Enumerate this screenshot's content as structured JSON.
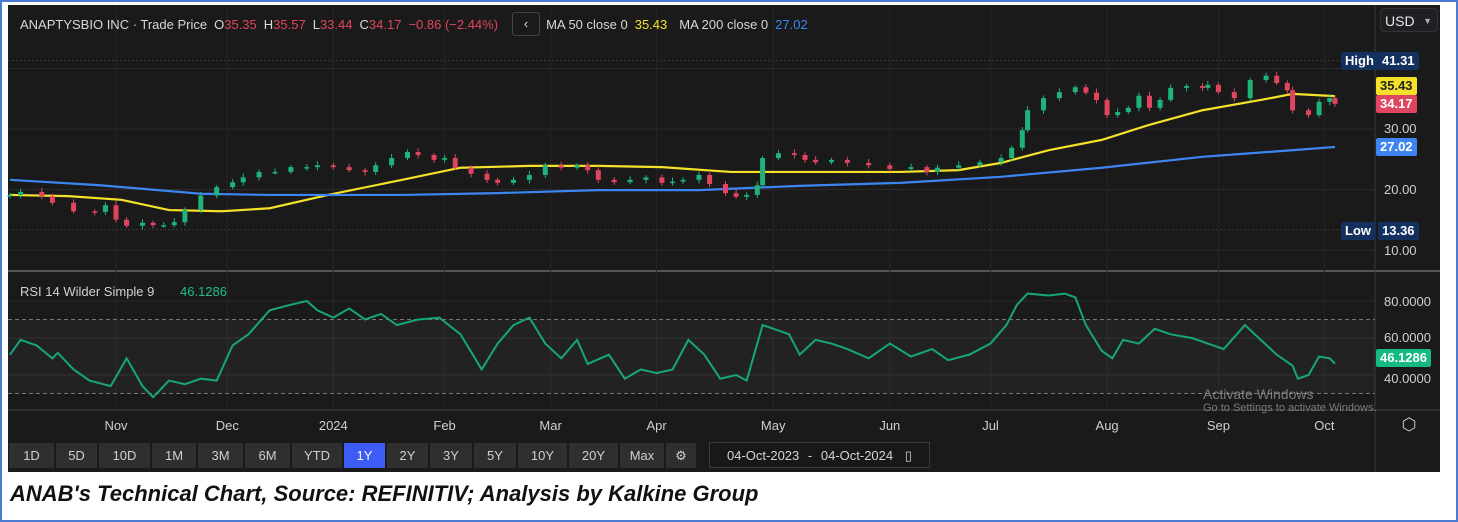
{
  "header": {
    "symbol": "ANAPTYSBIO INC · Trade Price",
    "open_label": "O",
    "open": "35.35",
    "high_label": "H",
    "high": "35.57",
    "low_label": "L",
    "low": "33.44",
    "close_label": "C",
    "close": "34.17",
    "change": "−0.86 (−2.44%)",
    "ma50_label": "MA 50 close 0",
    "ma50_value": "35.43",
    "ma200_label": "MA 200 close 0",
    "ma200_value": "27.02"
  },
  "currency": "USD",
  "colors": {
    "up": "#1fb37a",
    "down": "#e0455f",
    "ma50": "#f5e12a",
    "ma200": "#3d86f2",
    "rsi": "#16a67a",
    "bg": "#1a1a1a"
  },
  "price_tags": {
    "high_label": "High",
    "high": "41.31",
    "ma50": "35.43",
    "last": "34.17",
    "ma200": "27.02",
    "low_label": "Low",
    "low": "13.36"
  },
  "rsi": {
    "label": "RSI 14 Wilder Simple 9",
    "value": "46.1286"
  },
  "range_buttons": [
    "1D",
    "5D",
    "10D",
    "1M",
    "3M",
    "6M",
    "YTD",
    "1Y",
    "2Y",
    "3Y",
    "5Y",
    "10Y",
    "20Y",
    "Max"
  ],
  "active_range": "1Y",
  "date_range": {
    "from": "04-Oct-2023",
    "sep": "-",
    "to": "04-Oct-2024"
  },
  "watermark": {
    "title": "Activate Windows",
    "sub": "Go to Settings to activate Windows."
  },
  "caption": "ANAB's Technical Chart, Source: REFINITIV; Analysis by Kalkine Group",
  "chart_data": [
    {
      "type": "candlestick",
      "title": "ANAPTYSBIO INC · Trade Price",
      "x_unit": "trading day (0 = 04-Oct-2023, 250 = 04-Oct-2024)",
      "xlim": [
        0,
        250
      ],
      "ylim": [
        5,
        45
      ],
      "y_ticks": [
        "10.00",
        "20.00",
        "30.00"
      ],
      "y_tick_values": [
        10,
        20,
        30
      ],
      "x_tick_labels": [
        "Nov",
        "Dec",
        "2024",
        "Feb",
        "Mar",
        "Apr",
        "May",
        "Jun",
        "Jul",
        "Aug",
        "Sep",
        "Oct"
      ],
      "x_tick_days": [
        20,
        41,
        61,
        82,
        102,
        122,
        144,
        166,
        185,
        207,
        228,
        248
      ],
      "close": [
        [
          0,
          19.1
        ],
        [
          2,
          19.6
        ],
        [
          6,
          18.9
        ],
        [
          8,
          17.8
        ],
        [
          12,
          16.4
        ],
        [
          16,
          16.3
        ],
        [
          18,
          17.4
        ],
        [
          20,
          15
        ],
        [
          22,
          14
        ],
        [
          25,
          14.5
        ],
        [
          27,
          14.1
        ],
        [
          29,
          14.1
        ],
        [
          31,
          14.6
        ],
        [
          33,
          16.6
        ],
        [
          36,
          19
        ],
        [
          39,
          20.4
        ],
        [
          42,
          21.2
        ],
        [
          44,
          22
        ],
        [
          47,
          22.9
        ],
        [
          50,
          22.9
        ],
        [
          53,
          23.7
        ],
        [
          56,
          23.7
        ],
        [
          58,
          24
        ],
        [
          61,
          23.7
        ],
        [
          64,
          23.2
        ],
        [
          67,
          22.9
        ],
        [
          69,
          24
        ],
        [
          72,
          25.2
        ],
        [
          75,
          26.2
        ],
        [
          77,
          25.7
        ],
        [
          80,
          24.9
        ],
        [
          82,
          25.2
        ],
        [
          84,
          23.6
        ],
        [
          87,
          22.6
        ],
        [
          90,
          21.6
        ],
        [
          92,
          21.1
        ],
        [
          95,
          21.6
        ],
        [
          98,
          22.4
        ],
        [
          101,
          24
        ],
        [
          104,
          23.6
        ],
        [
          107,
          24
        ],
        [
          109,
          23.2
        ],
        [
          111,
          21.6
        ],
        [
          114,
          21.2
        ],
        [
          117,
          21.6
        ],
        [
          120,
          22
        ],
        [
          123,
          21.1
        ],
        [
          125,
          21.3
        ],
        [
          127,
          21.6
        ],
        [
          130,
          22.4
        ],
        [
          132,
          20.9
        ],
        [
          135,
          19.4
        ],
        [
          137,
          18.8
        ],
        [
          139,
          19.1
        ],
        [
          141,
          20.7
        ],
        [
          142,
          25.2
        ],
        [
          145,
          26
        ],
        [
          148,
          25.7
        ],
        [
          150,
          24.9
        ],
        [
          152,
          24.5
        ],
        [
          155,
          24.9
        ],
        [
          158,
          24.4
        ],
        [
          162,
          24
        ],
        [
          166,
          23.4
        ],
        [
          170,
          23.7
        ],
        [
          173,
          22.9
        ],
        [
          175,
          23.6
        ],
        [
          179,
          24
        ],
        [
          183,
          24.5
        ],
        [
          187,
          25.2
        ],
        [
          189,
          26.9
        ],
        [
          191,
          29.8
        ],
        [
          192,
          33.1
        ],
        [
          195,
          35.1
        ],
        [
          198,
          36.1
        ],
        [
          201,
          36.9
        ],
        [
          203,
          36
        ],
        [
          205,
          34.8
        ],
        [
          207,
          32.3
        ],
        [
          209,
          32.8
        ],
        [
          211,
          33.5
        ],
        [
          213,
          35.5
        ],
        [
          215,
          33.5
        ],
        [
          217,
          34.8
        ],
        [
          219,
          36.8
        ],
        [
          222,
          37.1
        ],
        [
          225,
          36.8
        ],
        [
          226,
          37.3
        ],
        [
          228,
          36.1
        ],
        [
          231,
          35.1
        ],
        [
          234,
          38.1
        ],
        [
          237,
          38.8
        ],
        [
          239,
          37.6
        ],
        [
          241,
          36.4
        ],
        [
          242,
          33.1
        ],
        [
          245,
          32.3
        ],
        [
          247,
          34.5
        ],
        [
          249,
          35.1
        ],
        [
          250,
          34.17
        ]
      ],
      "series": [
        {
          "name": "MA 50 close 0",
          "color": "#f5e12a",
          "points": [
            [
              0,
              19.1
            ],
            [
              11,
              18.9
            ],
            [
              21,
              18.3
            ],
            [
              30,
              16.6
            ],
            [
              40,
              16.4
            ],
            [
              49,
              16.9
            ],
            [
              60,
              19.1
            ],
            [
              74,
              21.6
            ],
            [
              85,
              23.6
            ],
            [
              98,
              23.9
            ],
            [
              111,
              23.9
            ],
            [
              123,
              23.7
            ],
            [
              136,
              22.9
            ],
            [
              149,
              22.9
            ],
            [
              168,
              22.9
            ],
            [
              179,
              23.2
            ],
            [
              187,
              24.4
            ],
            [
              196,
              26.5
            ],
            [
              206,
              28.2
            ],
            [
              215,
              30.7
            ],
            [
              225,
              33.1
            ],
            [
              236,
              34.8
            ],
            [
              242,
              35.8
            ],
            [
              250,
              35.43
            ]
          ]
        },
        {
          "name": "MA 200 close 0",
          "color": "#3d86f2",
          "points": [
            [
              0,
              21.6
            ],
            [
              17,
              20.7
            ],
            [
              36,
              19.3
            ],
            [
              49,
              19.1
            ],
            [
              74,
              19.1
            ],
            [
              92,
              19.4
            ],
            [
              111,
              19.9
            ],
            [
              130,
              19.9
            ],
            [
              149,
              20.6
            ],
            [
              168,
              21.1
            ],
            [
              187,
              22.1
            ],
            [
              206,
              23.6
            ],
            [
              225,
              25.4
            ],
            [
              250,
              27.02
            ]
          ]
        }
      ],
      "high": 41.31,
      "low": 13.36
    },
    {
      "type": "line",
      "title": "RSI 14 Wilder Simple 9",
      "xlim": [
        0,
        250
      ],
      "ylim": [
        20,
        90
      ],
      "y_ticks": [
        "40.0000",
        "60.0000",
        "80.0000"
      ],
      "y_tick_values": [
        40,
        60,
        80
      ],
      "bands": [
        30,
        70
      ],
      "points": [
        [
          0,
          51
        ],
        [
          2,
          59
        ],
        [
          5,
          56
        ],
        [
          8,
          49
        ],
        [
          9,
          52
        ],
        [
          12,
          43
        ],
        [
          15,
          37
        ],
        [
          19,
          34
        ],
        [
          22,
          49
        ],
        [
          25,
          34
        ],
        [
          27,
          28
        ],
        [
          30,
          37
        ],
        [
          33,
          35
        ],
        [
          36,
          38
        ],
        [
          39,
          37
        ],
        [
          42,
          56
        ],
        [
          45,
          62
        ],
        [
          49,
          75
        ],
        [
          53,
          78
        ],
        [
          56,
          80
        ],
        [
          58,
          75
        ],
        [
          61,
          71
        ],
        [
          64,
          76
        ],
        [
          67,
          70
        ],
        [
          70,
          73
        ],
        [
          73,
          67
        ],
        [
          77,
          70
        ],
        [
          81,
          71
        ],
        [
          85,
          62
        ],
        [
          89,
          43
        ],
        [
          92,
          57
        ],
        [
          95,
          67
        ],
        [
          98,
          71
        ],
        [
          101,
          57
        ],
        [
          104,
          49
        ],
        [
          107,
          59
        ],
        [
          109,
          46
        ],
        [
          113,
          51
        ],
        [
          116,
          38
        ],
        [
          119,
          43
        ],
        [
          122,
          41
        ],
        [
          125,
          43
        ],
        [
          128,
          59
        ],
        [
          131,
          51
        ],
        [
          134,
          38
        ],
        [
          137,
          40
        ],
        [
          139,
          37
        ],
        [
          142,
          67
        ],
        [
          145,
          64
        ],
        [
          147,
          62
        ],
        [
          149,
          51
        ],
        [
          152,
          59
        ],
        [
          155,
          57
        ],
        [
          158,
          54
        ],
        [
          162,
          49
        ],
        [
          166,
          57
        ],
        [
          170,
          50
        ],
        [
          174,
          54
        ],
        [
          177,
          48
        ],
        [
          181,
          51
        ],
        [
          185,
          57
        ],
        [
          188,
          67
        ],
        [
          190,
          78
        ],
        [
          192,
          84
        ],
        [
          196,
          83
        ],
        [
          199,
          84
        ],
        [
          201,
          82
        ],
        [
          203,
          67
        ],
        [
          206,
          53
        ],
        [
          208,
          49
        ],
        [
          210,
          59
        ],
        [
          213,
          57
        ],
        [
          216,
          65
        ],
        [
          219,
          62
        ],
        [
          223,
          60
        ],
        [
          226,
          57
        ],
        [
          229,
          54
        ],
        [
          233,
          67
        ],
        [
          236,
          59
        ],
        [
          239,
          51
        ],
        [
          242,
          45
        ],
        [
          243,
          38
        ],
        [
          245,
          40
        ],
        [
          247,
          50
        ],
        [
          249,
          49
        ],
        [
          250,
          46.13
        ]
      ]
    }
  ]
}
